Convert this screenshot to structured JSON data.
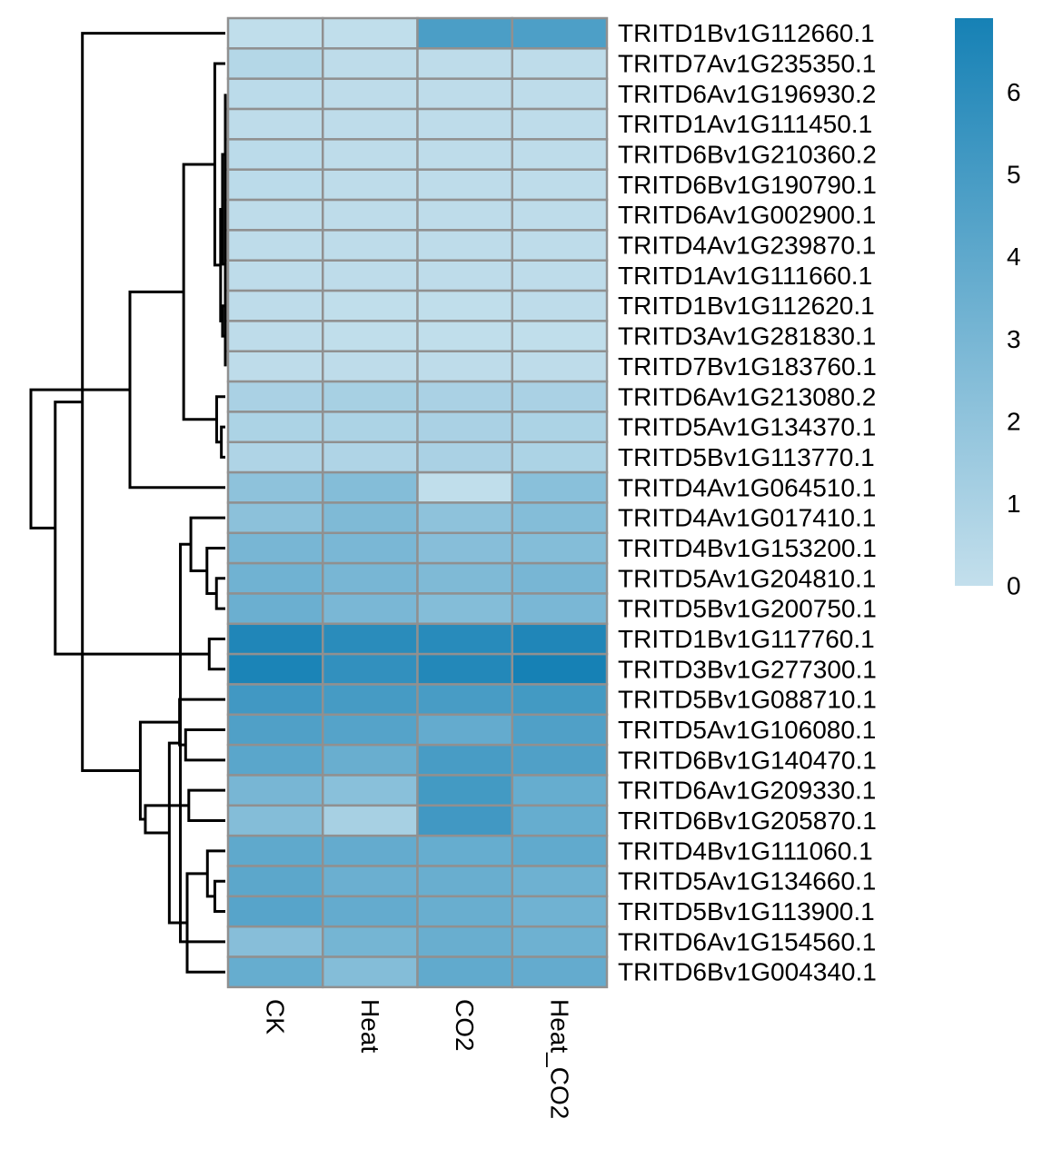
{
  "chart_data": {
    "type": "heatmap",
    "title": "",
    "xlabel": "",
    "ylabel": "",
    "columns": [
      "CK",
      "Heat",
      "CO2",
      "Heat_CO2"
    ],
    "rows": [
      "TRITD1Bv1G112660.1",
      "TRITD7Av1G235350.1",
      "TRITD6Av1G196930.2",
      "TRITD1Av1G111450.1",
      "TRITD6Bv1G210360.2",
      "TRITD6Bv1G190790.1",
      "TRITD6Av1G002900.1",
      "TRITD4Av1G239870.1",
      "TRITD1Av1G111660.1",
      "TRITD1Bv1G112620.1",
      "TRITD3Av1G281830.1",
      "TRITD7Bv1G183760.1",
      "TRITD6Av1G213080.2",
      "TRITD5Av1G134370.1",
      "TRITD5Bv1G113770.1",
      "TRITD4Av1G064510.1",
      "TRITD4Av1G017410.1",
      "TRITD4Bv1G153200.1",
      "TRITD5Av1G204810.1",
      "TRITD5Bv1G200750.1",
      "TRITD1Bv1G117760.1",
      "TRITD3Bv1G277300.1",
      "TRITD5Bv1G088710.1",
      "TRITD5Av1G106080.1",
      "TRITD6Bv1G140470.1",
      "TRITD6Av1G209330.1",
      "TRITD6Bv1G205870.1",
      "TRITD4Bv1G111060.1",
      "TRITD5Av1G134660.1",
      "TRITD5Bv1G113900.1",
      "TRITD6Av1G154560.1",
      "TRITD6Bv1G004340.1"
    ],
    "values": [
      [
        0.1,
        0.1,
        4.8,
        4.7
      ],
      [
        0.6,
        0.2,
        0.2,
        0.2
      ],
      [
        0.3,
        0.2,
        0.2,
        0.2
      ],
      [
        0.2,
        0.2,
        0.2,
        0.2
      ],
      [
        0.3,
        0.2,
        0.2,
        0.2
      ],
      [
        0.3,
        0.2,
        0.2,
        0.2
      ],
      [
        0.2,
        0.2,
        0.2,
        0.2
      ],
      [
        0.2,
        0.2,
        0.2,
        0.2
      ],
      [
        0.2,
        0.2,
        0.2,
        0.2
      ],
      [
        0.2,
        0.1,
        0.1,
        0.2
      ],
      [
        0.2,
        0.1,
        0.1,
        0.1
      ],
      [
        0.2,
        0.2,
        0.2,
        0.2
      ],
      [
        1.0,
        1.1,
        1.0,
        1.0
      ],
      [
        0.9,
        0.9,
        1.0,
        0.9
      ],
      [
        0.8,
        0.8,
        1.0,
        0.9
      ],
      [
        2.1,
        2.5,
        0.1,
        2.3
      ],
      [
        2.2,
        2.7,
        2.1,
        2.5
      ],
      [
        3.0,
        2.9,
        2.4,
        2.5
      ],
      [
        3.3,
        3.0,
        2.7,
        3.0
      ],
      [
        3.5,
        2.9,
        2.5,
        2.9
      ],
      [
        6.5,
        6.1,
        6.2,
        6.5
      ],
      [
        6.7,
        5.8,
        6.4,
        6.9
      ],
      [
        5.2,
        5.0,
        4.9,
        5.1
      ],
      [
        4.6,
        4.4,
        3.8,
        4.6
      ],
      [
        4.2,
        3.6,
        4.9,
        4.6
      ],
      [
        3.0,
        2.3,
        5.1,
        3.7
      ],
      [
        2.5,
        1.1,
        5.2,
        3.7
      ],
      [
        4.0,
        3.8,
        3.7,
        3.9
      ],
      [
        4.1,
        3.5,
        3.6,
        3.4
      ],
      [
        4.3,
        3.8,
        3.6,
        3.3
      ],
      [
        2.4,
        3.1,
        3.6,
        3.4
      ],
      [
        3.7,
        2.5,
        3.9,
        3.8
      ]
    ],
    "color_scale": {
      "min": 0,
      "max": 6.9,
      "low_color": "#c3dfec",
      "high_color": "#1681b5",
      "ticks": [
        0,
        1,
        2,
        3,
        4,
        5,
        6
      ]
    },
    "legend_position": "top-right",
    "cell_border_color": "#909090",
    "row_dendrogram": true
  }
}
